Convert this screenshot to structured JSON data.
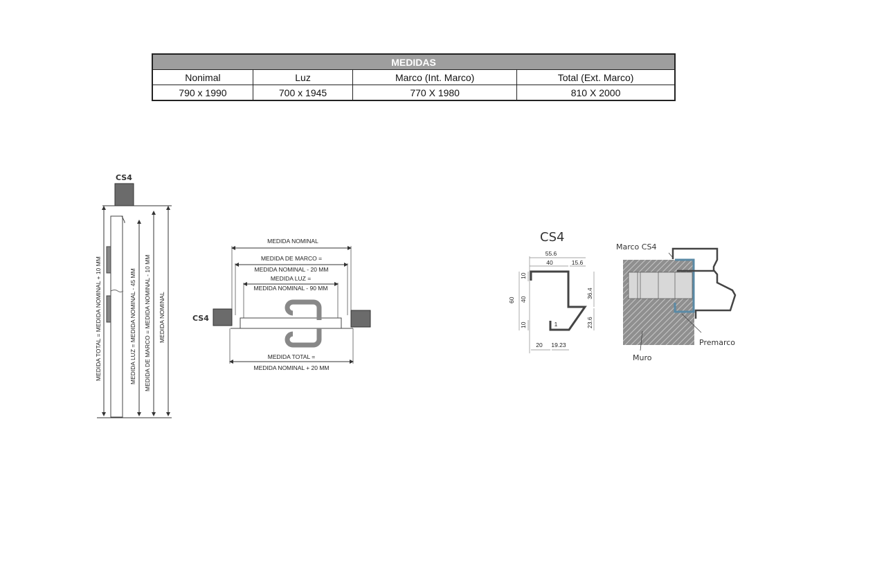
{
  "table": {
    "title": "MEDIDAS",
    "headers": [
      "Nonimal",
      "Luz",
      "Marco (Int. Marco)",
      "Total (Ext. Marco)"
    ],
    "values": [
      "790 x 1990",
      "700 x 1945",
      "770 X 1980",
      "810 X 2000"
    ]
  },
  "elevation": {
    "label": "CS4",
    "dims": [
      "MEDIDA TOTAL = MEDIDA NOMINAL + 10 MM",
      "MEDIDA LUZ = MEDIDA NOMINAL - 45 MM",
      "MEDIDA DE MARCO = MEDIDA NOMINAL - 10 MM",
      "MEDIDA NOMINAL"
    ]
  },
  "plan": {
    "label": "CS4",
    "nominal": "MEDIDA NOMINAL",
    "marco_1": "MEDIDA DE MARCO =",
    "marco_2": "MEDIDA NOMINAL - 20 MM",
    "luz_1": "MEDIDA LUZ =",
    "luz_2": "MEDIDA NOMINAL - 90 MM",
    "total_1": "MEDIDA TOTAL =",
    "total_2": "MEDIDA NOMINAL + 20 MM"
  },
  "profile": {
    "title": "CS4",
    "dims": {
      "w_total": "55.6",
      "w_40": "40",
      "w_15": "15.6",
      "h_60": "60",
      "h_10a": "10",
      "h_40": "40",
      "h_10b": "10",
      "h_36": "36.4",
      "h_23": "23.6",
      "b_20": "20",
      "b_19": "19.23",
      "t_1": "1"
    }
  },
  "section": {
    "marco": "Marco CS4",
    "premarco": "Premarco",
    "muro": "Muro",
    "premarco_color": "#5a8aa6",
    "wall_color": "#8f8f8f"
  }
}
